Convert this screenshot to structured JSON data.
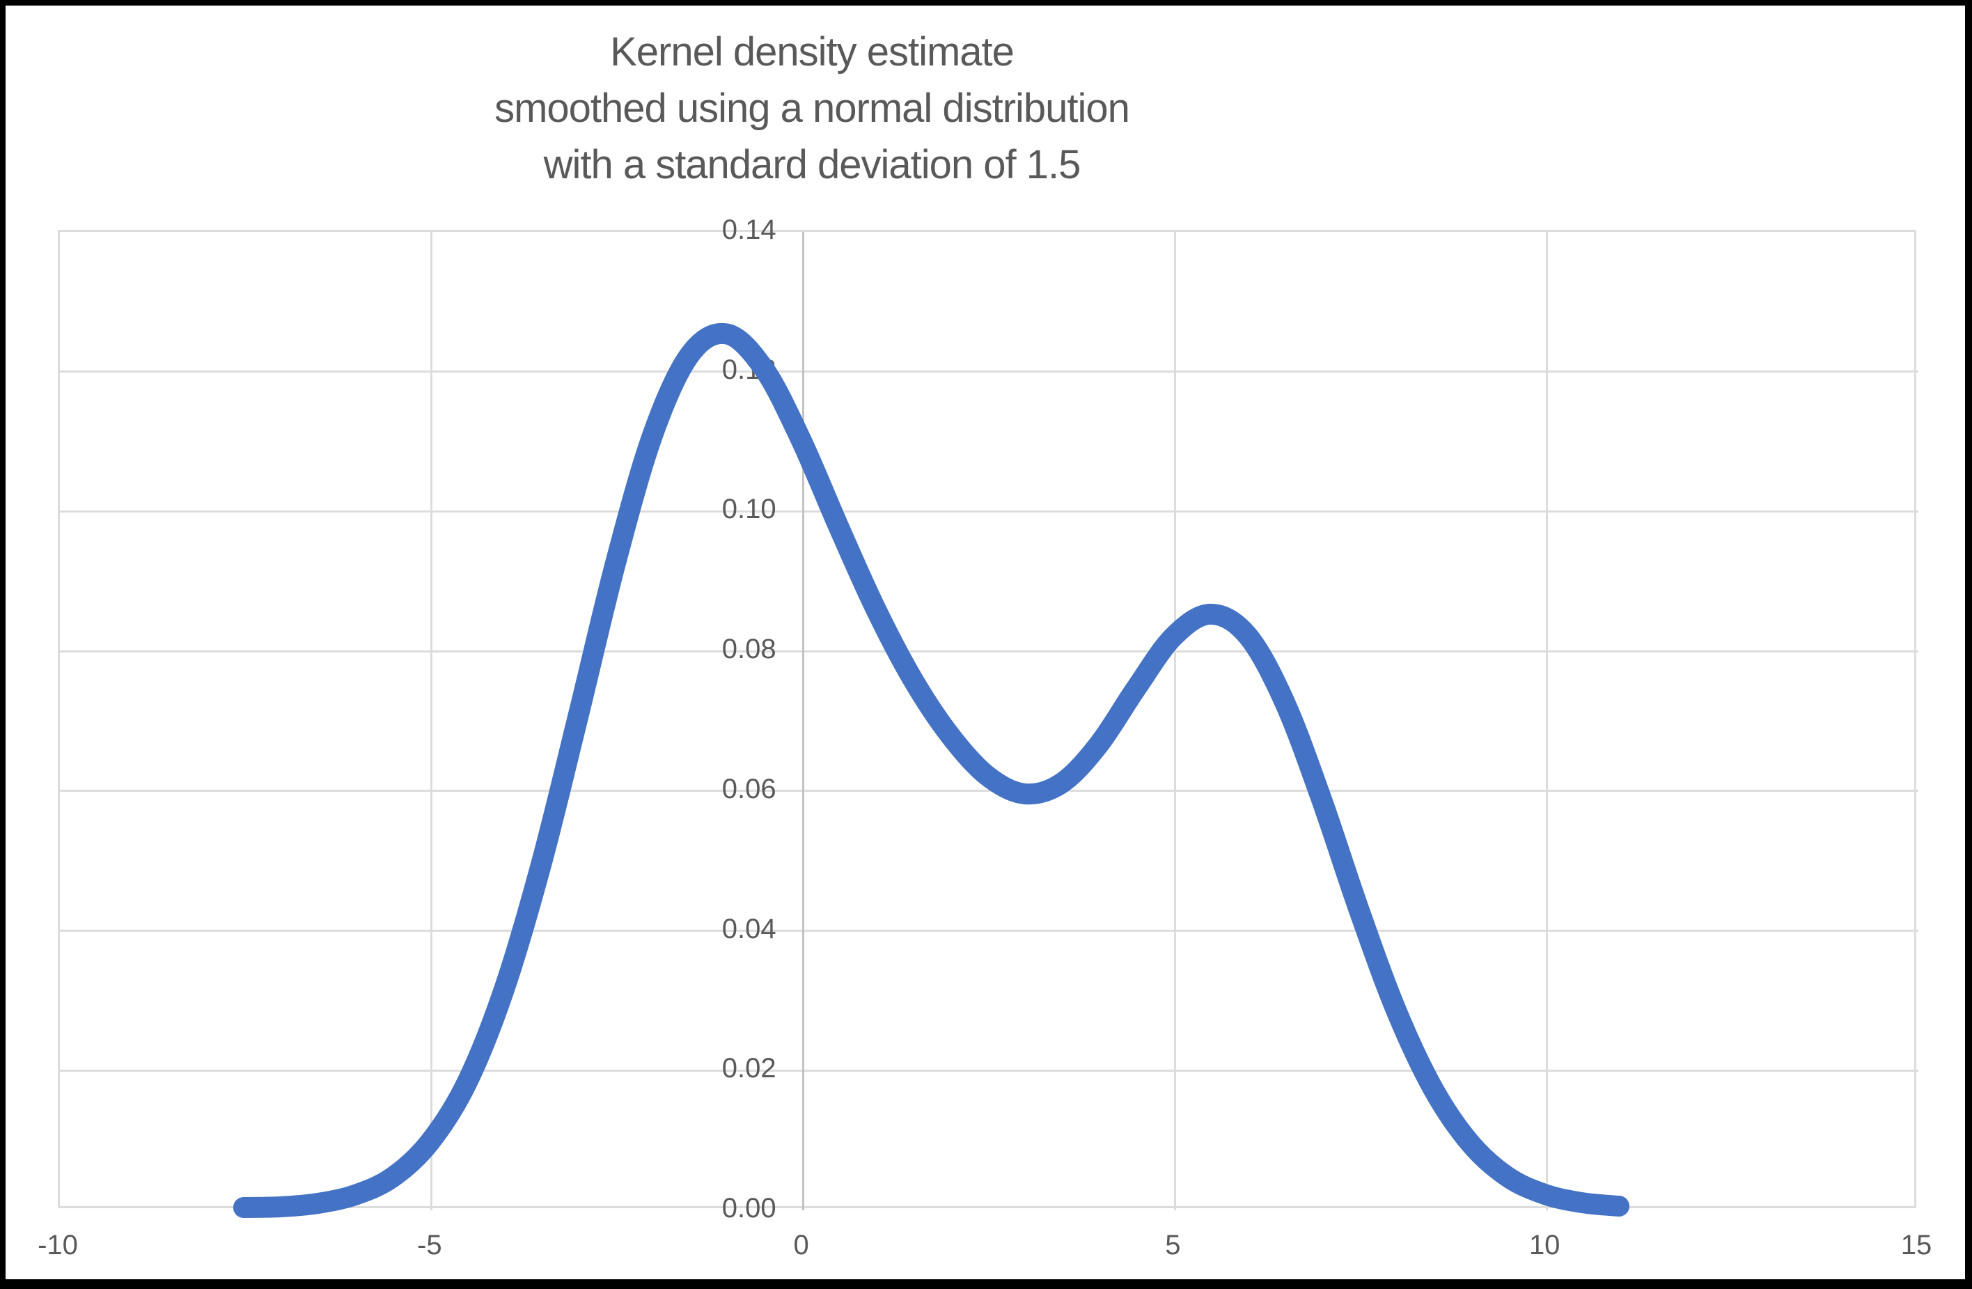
{
  "chart": {
    "title_lines": [
      "Kernel density estimate",
      "smoothed using a normal distribution",
      "with a standard deviation of 1.5"
    ]
  },
  "chart_data": {
    "type": "line",
    "title": "Kernel density estimate smoothed using a normal distribution with a standard deviation of 1.5",
    "xlabel": "",
    "ylabel": "",
    "xlim": [
      -10,
      15
    ],
    "ylim": [
      0,
      0.14
    ],
    "grid": true,
    "legend": "none",
    "x_ticks": {
      "values": [
        -10,
        -5,
        0,
        5,
        10,
        15
      ],
      "labels": [
        "-10",
        "-5",
        "0",
        "5",
        "10",
        "15"
      ]
    },
    "y_ticks": {
      "values": [
        0.0,
        0.02,
        0.04,
        0.06,
        0.08,
        0.1,
        0.12,
        0.14
      ],
      "labels": [
        "0.00",
        "0.02",
        "0.04",
        "0.06",
        "0.08",
        "0.10",
        "0.12",
        "0.14"
      ]
    },
    "series": [
      {
        "name": "Kernel density estimate",
        "color": "#4472C4",
        "x": [
          -7.5,
          -7.0,
          -6.5,
          -6.0,
          -5.5,
          -5.0,
          -4.5,
          -4.0,
          -3.5,
          -3.0,
          -2.5,
          -2.0,
          -1.5,
          -1.0,
          -0.5,
          0.0,
          0.5,
          1.0,
          1.5,
          2.0,
          2.5,
          3.0,
          3.5,
          4.0,
          4.5,
          5.0,
          5.5,
          6.0,
          6.5,
          7.0,
          7.5,
          8.0,
          8.5,
          9.0,
          9.5,
          10.0,
          10.5,
          11.0
        ],
        "y": [
          0.0001,
          0.0002,
          0.0007,
          0.0019,
          0.0044,
          0.0094,
          0.0179,
          0.0312,
          0.0491,
          0.0704,
          0.0922,
          0.1106,
          0.1221,
          0.1251,
          0.1201,
          0.1099,
          0.0976,
          0.0858,
          0.0757,
          0.0677,
          0.0619,
          0.0593,
          0.0608,
          0.0663,
          0.0743,
          0.0817,
          0.085,
          0.082,
          0.0725,
          0.0585,
          0.0428,
          0.0284,
          0.0171,
          0.0093,
          0.0045,
          0.002,
          0.0008,
          0.0003
        ]
      }
    ]
  },
  "colors": {
    "line": "#4472C4",
    "gridline": "#DCDCDC",
    "axis_line": "#C3C3C3",
    "text": "#595959",
    "background": "#FFFFFF",
    "frame": "#000000"
  }
}
